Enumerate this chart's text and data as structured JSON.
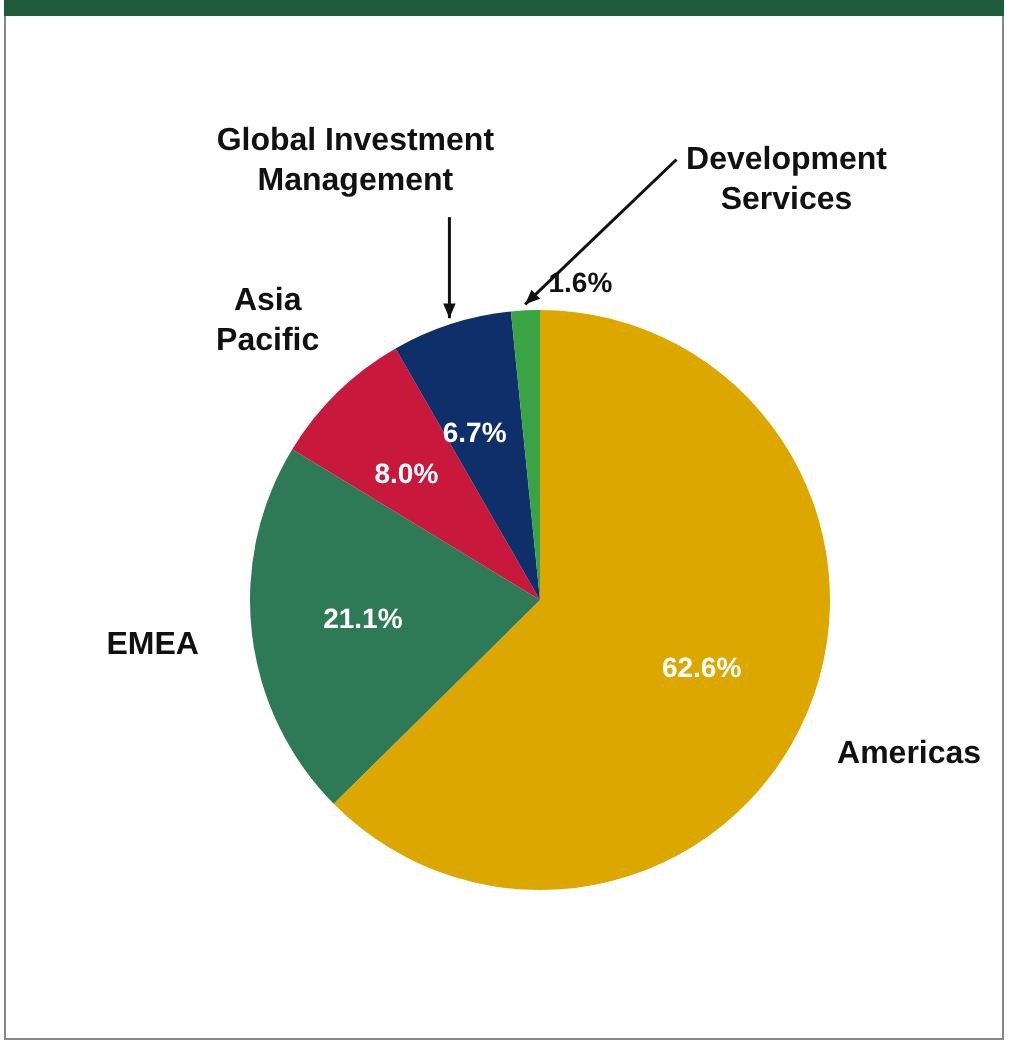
{
  "chart_data": {
    "type": "pie",
    "categories": [
      "Americas",
      "EMEA",
      "Asia Pacific",
      "Global Investment Management",
      "Development Services"
    ],
    "values": [
      62.6,
      21.1,
      8.0,
      6.7,
      1.6
    ],
    "value_labels": [
      "62.6%",
      "21.1%",
      "8.0%",
      "6.7%",
      "1.6%"
    ],
    "colors": [
      "#dca700",
      "#2e7a57",
      "#c8193c",
      "#0e2f6a",
      "#3aa344"
    ],
    "legend": false
  }
}
